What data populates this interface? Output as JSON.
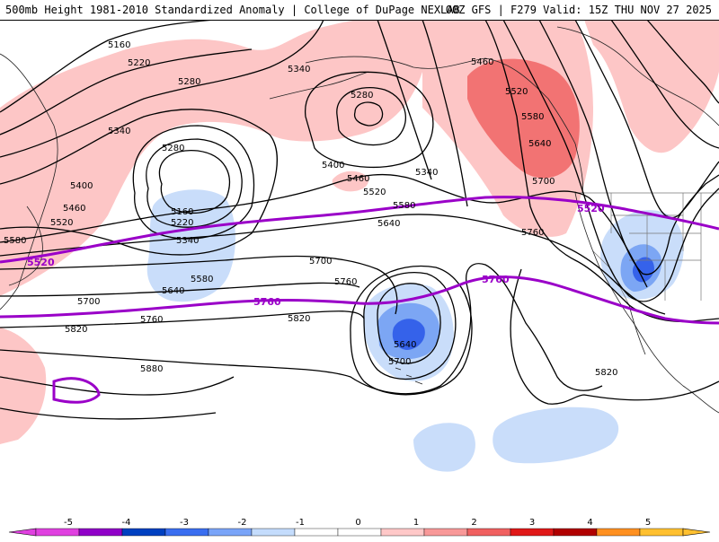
{
  "header": {
    "title": "500mb Height 1981-2010 Standardized Anomaly | College of DuPage NEXLAB",
    "model_info": "00Z GFS | F279 Valid: 15Z THU NOV 27 2025"
  },
  "contour_labels": [
    "5160",
    "5220",
    "5280",
    "5340",
    "5280",
    "5340",
    "5460",
    "5520",
    "5580",
    "5640",
    "5700",
    "5340",
    "5280",
    "5400",
    "5520",
    "5460",
    "5400",
    "5460",
    "5520",
    "5580",
    "5160",
    "5220",
    "5340",
    "5580",
    "5640",
    "5700",
    "5760",
    "5760",
    "5700",
    "5640",
    "5700",
    "5820",
    "5820",
    "5880",
    "5760",
    "5820",
    "5580",
    "5640"
  ],
  "bold_contour_labels": [
    "5520",
    "5520",
    "5760",
    "5760"
  ],
  "colorbar": {
    "ticks": [
      "-5",
      "-4",
      "-3",
      "-2",
      "-1",
      "0",
      "1",
      "2",
      "3",
      "4",
      "5"
    ],
    "colors": [
      "#e040e0",
      "#9000c8",
      "#0040c0",
      "#3a6ef0",
      "#7aa4f8",
      "#c4dcfc",
      "#ffffff",
      "#ffffff",
      "#ffc8c8",
      "#f89898",
      "#f06060",
      "#e01818",
      "#b00000",
      "#ff9020",
      "#ffc030"
    ]
  },
  "map_colors": {
    "positive_light": "#fdc6c6",
    "positive_mid": "#f27373",
    "negative_light": "#c9ddfa",
    "negative_mid": "#7ca6f4",
    "negative_dark": "#3562ea",
    "thick_contour": "#9a00c8"
  }
}
